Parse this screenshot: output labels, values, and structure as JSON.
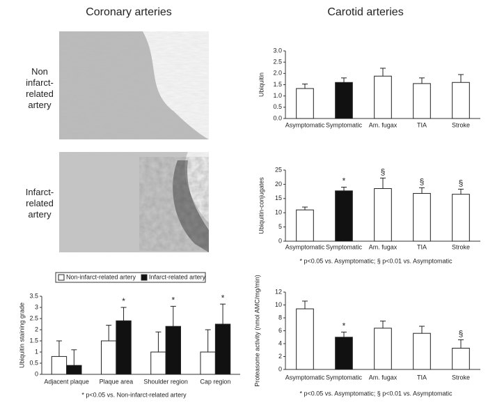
{
  "headings": [
    "Coronary arteries",
    "Carotid arteries"
  ],
  "image_labels": [
    "Non infarct-related artery",
    "Infarct-related artery"
  ],
  "chart_data": [
    {
      "type": "bar",
      "ylabel": "Ubiquitin staining grade",
      "categories": [
        "Adjacent plaque",
        "Plaque area",
        "Shoulder region",
        "Cap region"
      ],
      "series": [
        {
          "name": "Non-infarct-related artery",
          "color": "#ffffff",
          "values": [
            0.8,
            1.5,
            1.0,
            1.0
          ],
          "errors": [
            0.7,
            0.7,
            0.9,
            1.0
          ],
          "markers": [
            null,
            null,
            null,
            null
          ]
        },
        {
          "name": "Infarct-related artery",
          "color": "#111111",
          "values": [
            0.4,
            2.4,
            2.15,
            2.25
          ],
          "errors": [
            0.7,
            0.6,
            0.9,
            0.9
          ],
          "markers": [
            null,
            "*",
            "*",
            "*"
          ]
        }
      ],
      "ylim": [
        0,
        3.5
      ],
      "yticks": [
        0,
        0.5,
        1,
        1.5,
        2,
        2.5,
        3,
        3.5
      ],
      "legend": "top",
      "footnote": "* p<0.05 vs. Non-infarct-related artery"
    },
    {
      "type": "bar",
      "ylabel": "Ubiquitin",
      "categories": [
        "Asymptomatic",
        "Symptomatic",
        "Am. fugax",
        "TIA",
        "Stroke"
      ],
      "values": [
        1.33,
        1.6,
        1.88,
        1.55,
        1.6
      ],
      "errors": [
        0.2,
        0.2,
        0.35,
        0.25,
        0.35
      ],
      "colors": [
        "#ffffff",
        "#111111",
        "#ffffff",
        "#ffffff",
        "#ffffff"
      ],
      "ylim": [
        0,
        3
      ],
      "yticks": [
        {
          "value": 0,
          "label": "0.0"
        },
        {
          "value": 0.5,
          "label": "0.5"
        },
        {
          "value": 1,
          "label": "1.0"
        },
        {
          "value": 1.5,
          "label": "1.5"
        },
        {
          "value": 2,
          "label": "2.0"
        },
        {
          "value": 2.5,
          "label": "2.5"
        },
        {
          "value": 3,
          "label": "3.0"
        }
      ]
    },
    {
      "type": "bar",
      "ylabel": "Ubiquitin-conjugates",
      "categories": [
        "Asymptomatic",
        "Symptomatic",
        "Am. fugax",
        "TIA",
        "Stroke"
      ],
      "values": [
        11,
        17.7,
        18.5,
        16.8,
        16.5
      ],
      "errors": [
        1,
        1.3,
        3.7,
        2,
        1.8
      ],
      "colors": [
        "#ffffff",
        "#111111",
        "#ffffff",
        "#ffffff",
        "#ffffff"
      ],
      "markers": [
        null,
        "*",
        "§",
        "§",
        "§"
      ],
      "ylim": [
        0,
        25
      ],
      "yticks": [
        0,
        5,
        10,
        15,
        20,
        25
      ],
      "footnote": "* p<0.05 vs. Asymptomatic; § p<0.01 vs. Asymptomatic"
    },
    {
      "type": "bar",
      "ylabel": "Proteasome activity (nmol AMC/mg/min)",
      "categories": [
        "Asymptomatic",
        "Symptomatic",
        "Am. fugax",
        "TIA",
        "Stroke"
      ],
      "values": [
        9.4,
        5.0,
        6.4,
        5.6,
        3.3
      ],
      "errors": [
        1.2,
        0.8,
        1.1,
        1.1,
        1.3
      ],
      "colors": [
        "#ffffff",
        "#111111",
        "#ffffff",
        "#ffffff",
        "#ffffff"
      ],
      "markers": [
        null,
        "*",
        null,
        null,
        "§"
      ],
      "ylim": [
        0,
        12
      ],
      "yticks": [
        0,
        2,
        4,
        6,
        8,
        10,
        12
      ],
      "footnote": "* p<0.05 vs. Asymptomatic; § p<0.01 vs. Asymptomatic"
    }
  ]
}
